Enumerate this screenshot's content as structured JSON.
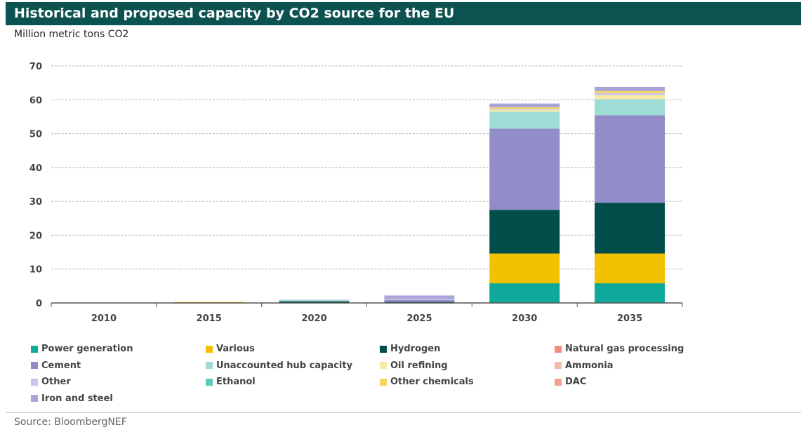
{
  "header": {
    "title": "Historical and proposed capacity by CO2 source for the EU"
  },
  "footer": {
    "source": "Source: BloombergNEF"
  },
  "colors": {
    "title_bar": "#0c5250",
    "grid": "#b5b5b5",
    "axis": "#555555"
  },
  "chart_data": {
    "type": "bar",
    "stacked": true,
    "title": "Historical and proposed capacity by CO2 source for the EU",
    "ylabel": "Million metric tons CO2",
    "xlabel": "",
    "ylim": [
      0,
      70
    ],
    "yticks": [
      0,
      10,
      20,
      30,
      40,
      50,
      60,
      70
    ],
    "grid": true,
    "legend_position": "bottom",
    "categories": [
      "2010",
      "2015",
      "2020",
      "2025",
      "2030",
      "2035"
    ],
    "series": [
      {
        "name": "Power generation",
        "color": "#0fa89a",
        "values": [
          0,
          0,
          0,
          0,
          5.8,
          5.8
        ]
      },
      {
        "name": "Various",
        "color": "#f2c200",
        "values": [
          0,
          0.3,
          0,
          0,
          8.8,
          8.8
        ]
      },
      {
        "name": "Hydrogen",
        "color": "#024e4b",
        "values": [
          0,
          0,
          0.5,
          0.3,
          12.9,
          15.0
        ]
      },
      {
        "name": "Natural gas processing",
        "color": "#ef8c7c",
        "values": [
          0,
          0,
          0,
          0,
          0,
          0
        ]
      },
      {
        "name": "Cement",
        "color": "#928dc8",
        "values": [
          0,
          0,
          0,
          0.6,
          24.0,
          25.8
        ]
      },
      {
        "name": "Unaccounted hub capacity",
        "color": "#9fdcd6",
        "values": [
          0,
          0,
          0.3,
          0,
          5.0,
          4.8
        ]
      },
      {
        "name": "Oil refining",
        "color": "#f7e8a6",
        "values": [
          0,
          0,
          0,
          0,
          0.6,
          1.2
        ]
      },
      {
        "name": "Ammonia",
        "color": "#f4b9ad",
        "values": [
          0,
          0,
          0,
          0,
          0,
          0
        ]
      },
      {
        "name": "Other",
        "color": "#c8c6e8",
        "values": [
          0,
          0,
          0.1,
          0.3,
          0.3,
          0.6
        ]
      },
      {
        "name": "Ethanol",
        "color": "#5fc9be",
        "values": [
          0,
          0,
          0,
          0,
          0,
          0
        ]
      },
      {
        "name": "Other chemicals",
        "color": "#f7d55e",
        "values": [
          0,
          0,
          0,
          0,
          0.4,
          0.6
        ]
      },
      {
        "name": "DAC",
        "color": "#ef9e8f",
        "values": [
          0,
          0,
          0,
          0,
          0,
          0
        ]
      },
      {
        "name": "Iron and steel",
        "color": "#aaa3d8",
        "values": [
          0,
          0,
          0,
          1.0,
          1.1,
          1.2
        ]
      }
    ]
  }
}
